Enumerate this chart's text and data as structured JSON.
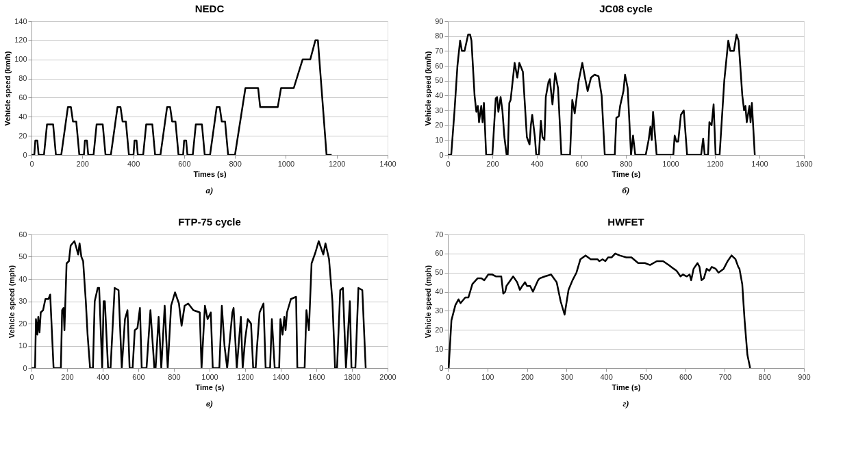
{
  "chart_data": [
    {
      "type": "line",
      "title": "NEDC",
      "xlabel": "Times (s)",
      "ylabel": "Vehicle speed (km/h)",
      "annotations": [
        "а)"
      ],
      "xlim": [
        0,
        1400
      ],
      "ylim": [
        0,
        140
      ],
      "xticks": [
        0,
        200,
        400,
        600,
        800,
        1000,
        1200,
        1400
      ],
      "yticks": [
        0,
        20,
        40,
        60,
        80,
        100,
        120,
        140
      ],
      "grid": "y",
      "x": [
        0,
        11,
        15,
        23,
        28,
        49,
        61,
        85,
        96,
        117,
        143,
        155,
        163,
        176,
        188,
        206,
        210,
        218,
        223,
        244,
        256,
        280,
        291,
        312,
        338,
        350,
        358,
        371,
        383,
        401,
        405,
        413,
        418,
        439,
        451,
        475,
        486,
        507,
        533,
        545,
        553,
        566,
        578,
        596,
        600,
        608,
        613,
        634,
        646,
        670,
        681,
        702,
        728,
        740,
        748,
        761,
        773,
        800,
        841,
        891,
        899,
        968,
        981,
        1031,
        1066,
        1096,
        1116,
        1126,
        1160,
        1180
      ],
      "series": [
        {
          "color": "#000000",
          "values": [
            0,
            0,
            15,
            15,
            0,
            0,
            32,
            32,
            0,
            0,
            50,
            50,
            35,
            35,
            0,
            0,
            15,
            15,
            0,
            0,
            32,
            32,
            0,
            0,
            50,
            50,
            35,
            35,
            0,
            0,
            15,
            15,
            0,
            0,
            32,
            32,
            0,
            0,
            50,
            50,
            35,
            35,
            0,
            0,
            15,
            15,
            0,
            0,
            32,
            32,
            0,
            0,
            50,
            50,
            35,
            35,
            0,
            0,
            70,
            70,
            50,
            50,
            70,
            70,
            100,
            100,
            120,
            120,
            0,
            0
          ]
        }
      ]
    },
    {
      "type": "line",
      "title": "JC08  cycle",
      "xlabel": "Time (s)",
      "ylabel": "Vehicle speed (km/h)",
      "annotations": [
        "б)"
      ],
      "xlim": [
        0,
        1600
      ],
      "ylim": [
        0,
        90
      ],
      "xticks": [
        0,
        200,
        400,
        600,
        800,
        1000,
        1200,
        1400,
        1600
      ],
      "yticks": [
        0,
        10,
        20,
        30,
        40,
        50,
        60,
        70,
        80,
        90
      ],
      "grid": "y",
      "x": [
        0,
        15,
        30,
        43,
        55,
        63,
        75,
        91,
        100,
        106,
        120,
        128,
        135,
        140,
        150,
        156,
        162,
        172,
        200,
        215,
        221,
        227,
        237,
        245,
        254,
        264,
        269,
        276,
        282,
        300,
        312,
        321,
        337,
        355,
        367,
        373,
        379,
        391,
        397,
        409,
        418,
        425,
        434,
        440,
        452,
        458,
        470,
        482,
        495,
        510,
        549,
        559,
        570,
        588,
        604,
        616,
        628,
        643,
        659,
        677,
        691,
        705,
        750,
        757,
        768,
        774,
        789,
        796,
        808,
        823,
        832,
        842,
        889,
        902,
        910,
        916,
        922,
        938,
        1013,
        1019,
        1027,
        1035,
        1047,
        1060,
        1075,
        1138,
        1147,
        1154,
        1169,
        1175,
        1185,
        1194,
        1203,
        1221,
        1242,
        1260,
        1269,
        1285,
        1297,
        1306,
        1323,
        1331,
        1337,
        1343,
        1355,
        1360,
        1366,
        1379
      ],
      "series": [
        {
          "color": "#000000",
          "values": [
            0,
            0,
            30,
            60,
            77,
            70,
            70,
            81,
            81,
            77,
            40,
            29,
            33,
            22,
            33,
            22,
            35,
            0,
            0,
            38,
            39,
            29,
            39,
            30,
            12,
            0,
            0,
            35,
            37,
            62,
            52,
            62,
            56,
            12,
            7,
            20,
            27,
            12,
            0,
            0,
            23,
            12,
            10,
            39,
            49,
            51,
            34,
            55,
            45,
            0,
            0,
            37,
            28,
            50,
            62,
            52,
            43,
            52,
            54,
            53,
            40,
            0,
            0,
            25,
            26,
            33,
            43,
            54,
            45,
            0,
            13,
            0,
            0,
            10,
            19,
            10,
            29,
            0,
            0,
            13,
            9,
            9,
            27,
            30,
            0,
            0,
            11,
            0,
            0,
            22,
            20,
            34,
            0,
            0,
            50,
            77,
            70,
            70,
            81,
            77,
            40,
            30,
            33,
            22,
            33,
            22,
            35,
            0
          ]
        }
      ]
    },
    {
      "type": "line",
      "title": "FTP-75 cycle",
      "xlabel": "Time (s)",
      "ylabel": "Vehicle speed (mph)",
      "annotations": [
        "в)"
      ],
      "xlim": [
        0,
        2000
      ],
      "ylim": [
        0,
        60
      ],
      "xticks": [
        0,
        200,
        400,
        600,
        800,
        1000,
        1200,
        1400,
        1600,
        1800,
        2000
      ],
      "yticks": [
        0,
        10,
        20,
        30,
        40,
        50,
        60
      ],
      "grid": "y",
      "x": [
        0,
        20,
        25,
        33,
        38,
        45,
        52,
        65,
        78,
        95,
        105,
        124,
        165,
        172,
        180,
        185,
        197,
        210,
        220,
        241,
        252,
        262,
        270,
        280,
        290,
        305,
        315,
        329,
        345,
        355,
        372,
        380,
        397,
        405,
        412,
        430,
        444,
        467,
        489,
        507,
        525,
        539,
        551,
        568,
        580,
        595,
        609,
        619,
        646,
        668,
        690,
        697,
        714,
        729,
        748,
        765,
        784,
        806,
        828,
        843,
        860,
        880,
        909,
        945,
        955,
        974,
        989,
        1007,
        1018,
        1055,
        1069,
        1084,
        1099,
        1128,
        1135,
        1153,
        1176,
        1186,
        1200,
        1215,
        1233,
        1245,
        1259,
        1267,
        1281,
        1303,
        1315,
        1340,
        1350,
        1366,
        1391,
        1398,
        1410,
        1420,
        1427,
        1435,
        1457,
        1486,
        1493,
        1534,
        1544,
        1558,
        1573,
        1595,
        1613,
        1639,
        1651,
        1671,
        1690,
        1705,
        1716,
        1734,
        1749,
        1766,
        1788,
        1797,
        1819,
        1836,
        1858,
        1877
      ],
      "series": [
        {
          "color": "#000000",
          "values": [
            0,
            0,
            22,
            15,
            23,
            16,
            25,
            26,
            31,
            31,
            33,
            0,
            0,
            26,
            27,
            17,
            47,
            48,
            55,
            57,
            54,
            51,
            56,
            50,
            48,
            30,
            15,
            0,
            0,
            30,
            36,
            36,
            0,
            30,
            30,
            0,
            0,
            36,
            35,
            0,
            22,
            26,
            0,
            0,
            17,
            18,
            27,
            0,
            0,
            26,
            0,
            0,
            23,
            0,
            28,
            0,
            28,
            34,
            29,
            19,
            28,
            29,
            26,
            25,
            0,
            28,
            22,
            25,
            0,
            0,
            28,
            10,
            0,
            25,
            27,
            0,
            23,
            0,
            13,
            22,
            20,
            0,
            0,
            10,
            25,
            29,
            0,
            0,
            22,
            0,
            0,
            22,
            15,
            23,
            17,
            25,
            31,
            32,
            0,
            0,
            26,
            17,
            47,
            52,
            57,
            51,
            56,
            49,
            30,
            0,
            0,
            35,
            36,
            0,
            30,
            0,
            0,
            36,
            35,
            0
          ]
        }
      ]
    },
    {
      "type": "line",
      "title": "HWFET",
      "xlabel": "Time (s)",
      "ylabel": "Vehicle speed (mph)",
      "annotations": [
        "г)"
      ],
      "xlim": [
        0,
        900
      ],
      "ylim": [
        0,
        70
      ],
      "xticks": [
        0,
        100,
        200,
        300,
        400,
        500,
        600,
        700,
        800,
        900
      ],
      "yticks": [
        0,
        10,
        20,
        30,
        40,
        50,
        60,
        70
      ],
      "grid": "y",
      "x": [
        2,
        9,
        19,
        27,
        32,
        44,
        52,
        62,
        75,
        85,
        92,
        102,
        112,
        122,
        135,
        140,
        145,
        148,
        165,
        175,
        182,
        188,
        195,
        200,
        208,
        215,
        228,
        232,
        245,
        261,
        275,
        285,
        295,
        305,
        315,
        325,
        335,
        348,
        361,
        378,
        383,
        391,
        398,
        405,
        414,
        423,
        434,
        451,
        464,
        481,
        498,
        511,
        528,
        544,
        558,
        571,
        578,
        588,
        594,
        604,
        611,
        615,
        621,
        631,
        636,
        641,
        647,
        654,
        661,
        667,
        677,
        684,
        697,
        707,
        717,
        727,
        734,
        737,
        744,
        750,
        757,
        764
      ],
      "series": [
        {
          "color": "#000000",
          "values": [
            0,
            25,
            33,
            36,
            34,
            37,
            37,
            44,
            47,
            47,
            46,
            49,
            49,
            48,
            48,
            39,
            40,
            43,
            48,
            45,
            41,
            43,
            45,
            43,
            43,
            40,
            46,
            47,
            48,
            49,
            45,
            35,
            28,
            41,
            46,
            50,
            57,
            59,
            57,
            57,
            56,
            57,
            56,
            58,
            58,
            60,
            59,
            58,
            58,
            55,
            55,
            54,
            56,
            56,
            54,
            52,
            51,
            48,
            49,
            48,
            49,
            46,
            52,
            55,
            53,
            46,
            47,
            52,
            51,
            53,
            52,
            50,
            52,
            56,
            59,
            57,
            53,
            52,
            44,
            25,
            7,
            0
          ]
        }
      ]
    }
  ]
}
